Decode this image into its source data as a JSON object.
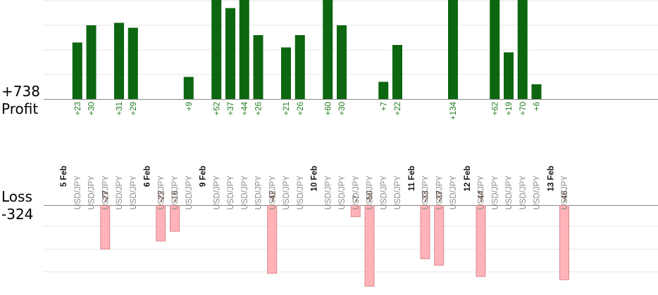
{
  "profit": {
    "total_label": "+738",
    "label": "Profit"
  },
  "loss": {
    "total_label": "-324",
    "label": "Loss"
  },
  "colors": {
    "profit_bar": "#0d6610",
    "profit_text": "#1d7a1d",
    "loss_bar": "#ffb3b8",
    "loss_bar_border": "#d98a90",
    "loss_text": "#3d1a0a",
    "pair_text": "#8a8a8a",
    "grid": "#e4e4e4",
    "axis": "#888888"
  },
  "chart_data": {
    "type": "bar",
    "ylim_profit": [
      0,
      40
    ],
    "ylim_loss": [
      0,
      50
    ],
    "slots": [
      {
        "kind": "date",
        "label": "5 Feb"
      },
      {
        "kind": "trade",
        "pair": "USD/JPY",
        "value": 23
      },
      {
        "kind": "trade",
        "pair": "USD/JPY",
        "value": 30
      },
      {
        "kind": "trade",
        "pair": "USD/JPY",
        "value": -27
      },
      {
        "kind": "trade",
        "pair": "USD/JPY",
        "value": 31
      },
      {
        "kind": "trade",
        "pair": "USD/JPY",
        "value": 29
      },
      {
        "kind": "date",
        "label": "6 Feb"
      },
      {
        "kind": "trade",
        "pair": "USD/JPY",
        "value": -22
      },
      {
        "kind": "trade",
        "pair": "USD/JPY",
        "value": -16
      },
      {
        "kind": "trade",
        "pair": "USD/JPY",
        "value": 9
      },
      {
        "kind": "date",
        "label": "9 Feb"
      },
      {
        "kind": "trade",
        "pair": "USD/JPY",
        "value": 52
      },
      {
        "kind": "trade",
        "pair": "USD/JPY",
        "value": 37
      },
      {
        "kind": "trade",
        "pair": "USD/JPY",
        "value": 44
      },
      {
        "kind": "trade",
        "pair": "USD/JPY",
        "value": 26
      },
      {
        "kind": "trade",
        "pair": "USD/JPY",
        "value": -42
      },
      {
        "kind": "trade",
        "pair": "USD/JPY",
        "value": 21
      },
      {
        "kind": "trade",
        "pair": "USD/JPY",
        "value": 26
      },
      {
        "kind": "date",
        "label": "10 Feb"
      },
      {
        "kind": "trade",
        "pair": "USD/JPY",
        "value": 60
      },
      {
        "kind": "trade",
        "pair": "USD/JPY",
        "value": 30
      },
      {
        "kind": "trade",
        "pair": "USD/JPY",
        "value": -7
      },
      {
        "kind": "trade",
        "pair": "USD/JPY",
        "value": -50
      },
      {
        "kind": "trade",
        "pair": "USD/JPY",
        "value": 7
      },
      {
        "kind": "trade",
        "pair": "USD/JPY",
        "value": 22
      },
      {
        "kind": "date",
        "label": "11 Feb"
      },
      {
        "kind": "trade",
        "pair": "USD/JPY",
        "value": -33
      },
      {
        "kind": "trade",
        "pair": "USD/JPY",
        "value": -37
      },
      {
        "kind": "trade",
        "pair": "USD/JPY",
        "value": 134
      },
      {
        "kind": "date",
        "label": "12 Feb"
      },
      {
        "kind": "trade",
        "pair": "USD/JPY",
        "value": -44
      },
      {
        "kind": "trade",
        "pair": "USD/JPY",
        "value": 62
      },
      {
        "kind": "trade",
        "pair": "USD/JPY",
        "value": 19
      },
      {
        "kind": "trade",
        "pair": "USD/JPY",
        "value": 70
      },
      {
        "kind": "trade",
        "pair": "USD/JPY",
        "value": 6
      },
      {
        "kind": "date",
        "label": "13 Feb"
      },
      {
        "kind": "trade",
        "pair": "USD/JPY",
        "value": -46
      }
    ]
  }
}
